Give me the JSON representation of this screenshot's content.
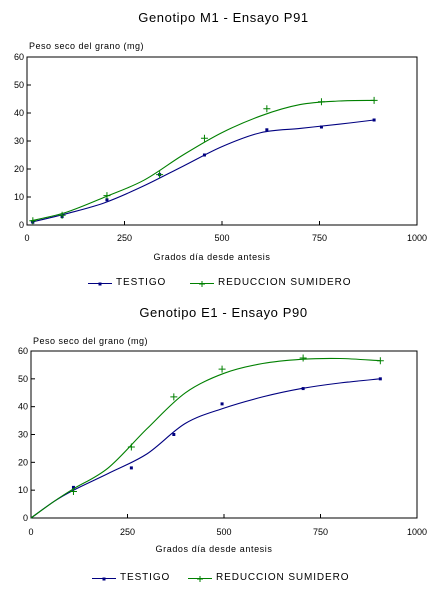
{
  "chart_data": [
    {
      "type": "line",
      "title": "Genotipo M1 - Ensayo P91",
      "ylabel": "Peso seco del grano (mg)",
      "xlabel": "Grados día desde antesis",
      "xlim": [
        0,
        1000
      ],
      "ylim": [
        0,
        60
      ],
      "xticks": [
        "0",
        "250",
        "500",
        "750",
        "1000"
      ],
      "yticks": [
        "0",
        "10",
        "20",
        "30",
        "40",
        "50",
        "60"
      ],
      "grid": false,
      "legend_position": "bottom",
      "series": [
        {
          "name": "TESTIGO",
          "color": "#000080",
          "marker": "dot",
          "points": [
            [
              15,
              1
            ],
            [
              90,
              3
            ],
            [
              205,
              9
            ],
            [
              340,
              18
            ],
            [
              455,
              25
            ],
            [
              615,
              34
            ],
            [
              755,
              35
            ],
            [
              890,
              37.5
            ]
          ],
          "fit": [
            [
              10,
              1
            ],
            [
              100,
              4
            ],
            [
              200,
              8
            ],
            [
              300,
              14
            ],
            [
              400,
              21
            ],
            [
              500,
              28
            ],
            [
              600,
              33
            ],
            [
              700,
              34.5
            ],
            [
              800,
              36
            ],
            [
              890,
              37.5
            ]
          ]
        },
        {
          "name": "REDUCCION SUMIDERO",
          "color": "#008000",
          "marker": "plus",
          "points": [
            [
              15,
              1.5
            ],
            [
              90,
              3.5
            ],
            [
              205,
              10.5
            ],
            [
              340,
              18
            ],
            [
              455,
              31
            ],
            [
              615,
              41.5
            ],
            [
              755,
              44
            ],
            [
              890,
              44.5
            ]
          ],
          "fit": [
            [
              10,
              1.5
            ],
            [
              100,
              4.5
            ],
            [
              200,
              10
            ],
            [
              300,
              16
            ],
            [
              400,
              25
            ],
            [
              500,
              33
            ],
            [
              600,
              39
            ],
            [
              700,
              43
            ],
            [
              800,
              44.3
            ],
            [
              890,
              44.5
            ]
          ]
        }
      ]
    },
    {
      "type": "line",
      "title": "Genotipo E1 - Ensayo P90",
      "ylabel": "Peso seco del grano (mg)",
      "xlabel": "Grados día desde antesis",
      "xlim": [
        0,
        1000
      ],
      "ylim": [
        0,
        60
      ],
      "xticks": [
        "0",
        "250",
        "500",
        "750",
        "1000"
      ],
      "yticks": [
        "0",
        "10",
        "20",
        "30",
        "40",
        "50",
        "60"
      ],
      "grid": false,
      "legend_position": "bottom",
      "series": [
        {
          "name": "TESTIGO",
          "color": "#000080",
          "marker": "dot",
          "points": [
            [
              110,
              11
            ],
            [
              260,
              18
            ],
            [
              370,
              30
            ],
            [
              495,
              41
            ],
            [
              705,
              46.5
            ],
            [
              905,
              50
            ]
          ],
          "fit": [
            [
              0,
              0
            ],
            [
              60,
              6
            ],
            [
              110,
              10
            ],
            [
              200,
              16
            ],
            [
              300,
              23
            ],
            [
              400,
              34
            ],
            [
              500,
              39.5
            ],
            [
              600,
              43.5
            ],
            [
              700,
              46.5
            ],
            [
              800,
              48.5
            ],
            [
              905,
              50
            ]
          ]
        },
        {
          "name": "REDUCCION SUMIDERO",
          "color": "#008000",
          "marker": "plus",
          "points": [
            [
              110,
              9.5
            ],
            [
              260,
              25.5
            ],
            [
              370,
              43.5
            ],
            [
              495,
              53.5
            ],
            [
              705,
              57.5
            ],
            [
              905,
              56.5
            ]
          ],
          "fit": [
            [
              0,
              0
            ],
            [
              60,
              6
            ],
            [
              110,
              10.5
            ],
            [
              200,
              18
            ],
            [
              300,
              32
            ],
            [
              400,
              45
            ],
            [
              500,
              52
            ],
            [
              600,
              55.5
            ],
            [
              700,
              57
            ],
            [
              800,
              57.3
            ],
            [
              905,
              56.5
            ]
          ]
        }
      ]
    }
  ]
}
